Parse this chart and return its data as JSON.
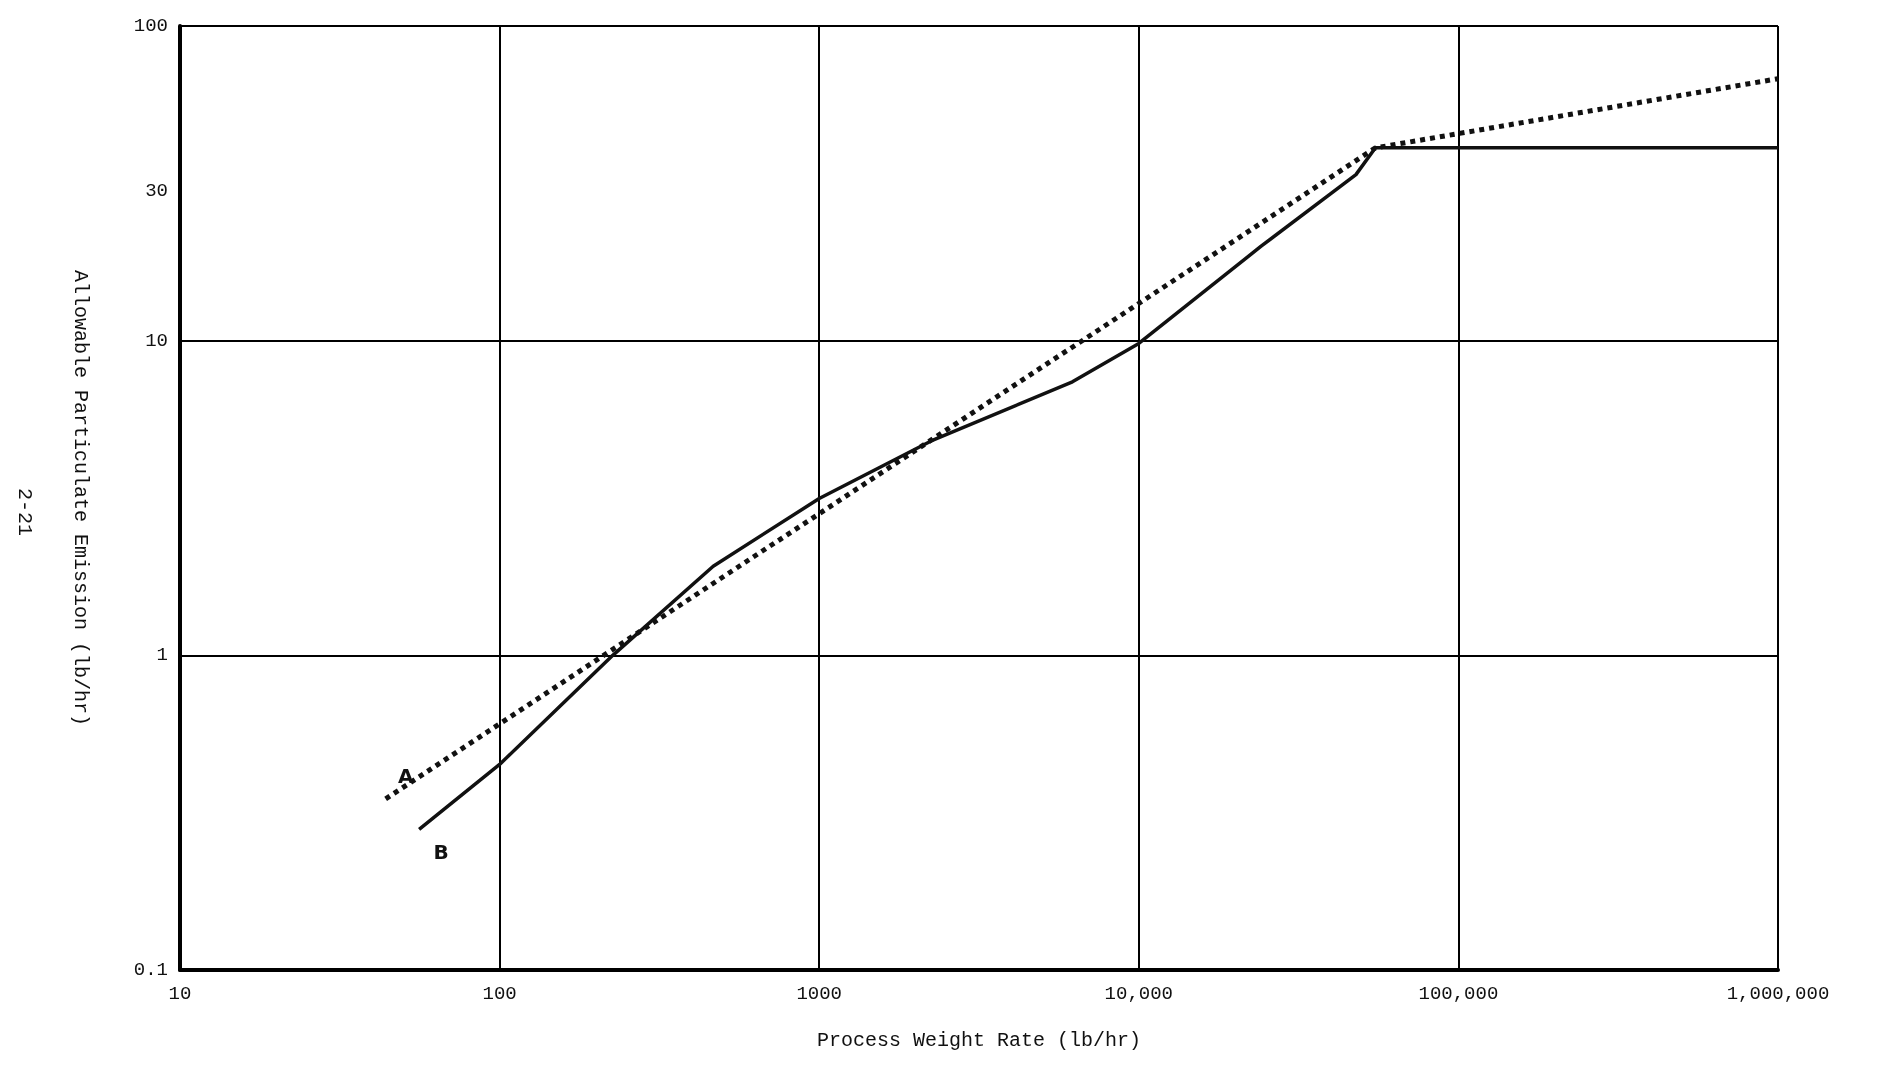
{
  "chart_data": {
    "type": "line",
    "xlabel": "Process Weight Rate (lb/hr)",
    "ylabel": "Allowable Particulate Emission (lb/hr)",
    "log": "xy",
    "grid": true,
    "legend": false,
    "xlim": [
      10,
      1000000
    ],
    "ylim": [
      0.1,
      100
    ],
    "xticks": [
      10,
      100,
      1000,
      {
        "value": 10000,
        "label": "10,000"
      },
      {
        "value": 100000,
        "label": "100,000"
      },
      {
        "value": 1000000,
        "label": "1,000,000"
      }
    ],
    "yticks": [
      0.1,
      1,
      10,
      30,
      100
    ],
    "annotations": [
      "2-21"
    ],
    "series": [
      {
        "name": "A",
        "color": "#111111",
        "line_style": "dotted",
        "x": [
          44,
          55000,
          1000000
        ],
        "values": [
          0.35,
          41,
          68
        ]
      },
      {
        "name": "B",
        "color": "#111111",
        "line_style": "solid",
        "x": [
          56,
          100,
          226,
          466,
          1000,
          2240,
          6200,
          10000,
          24200,
          47800,
          55000,
          1000000
        ],
        "values": [
          0.28,
          0.45,
          1.0,
          1.92,
          3.15,
          4.8,
          7.4,
          9.8,
          20,
          33.7,
          41,
          41
        ]
      }
    ]
  }
}
